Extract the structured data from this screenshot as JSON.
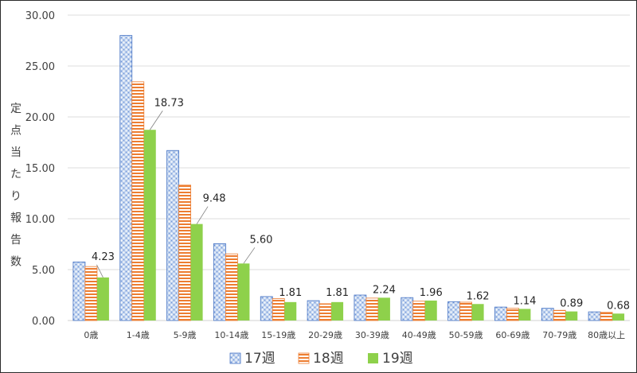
{
  "chart_data": {
    "type": "bar",
    "title": "",
    "xlabel": "",
    "ylabel": "定点当たり報告数",
    "ylim": [
      0,
      30
    ],
    "yticks": [
      "0.00",
      "5.00",
      "10.00",
      "15.00",
      "20.00",
      "25.00",
      "30.00"
    ],
    "grid": true,
    "legend": "bottom",
    "categories": [
      "0歳",
      "1-4歳",
      "5-9歳",
      "10-14歳",
      "15-19歳",
      "20-29歳",
      "30-39歳",
      "40-49歳",
      "50-59歳",
      "60-69歳",
      "70-79歳",
      "80歳以上"
    ],
    "series": [
      {
        "name": "17週",
        "pattern": "dots",
        "color": "#4472c4",
        "values": [
          5.75,
          28.0,
          16.7,
          7.55,
          2.35,
          1.95,
          2.5,
          2.25,
          1.85,
          1.32,
          1.2,
          0.85
        ]
      },
      {
        "name": "18週",
        "pattern": "stripes",
        "color": "#ed7d31",
        "values": [
          5.3,
          23.45,
          13.3,
          6.55,
          2.15,
          1.65,
          2.2,
          1.9,
          1.8,
          1.2,
          1.0,
          0.8
        ]
      },
      {
        "name": "19週",
        "pattern": "solid",
        "color": "#8ed14b",
        "values": [
          4.23,
          18.73,
          9.48,
          5.6,
          1.81,
          1.81,
          2.24,
          1.96,
          1.62,
          1.14,
          0.89,
          0.68
        ]
      }
    ],
    "data_labels": {
      "series": "19週",
      "labels": [
        "4.23",
        "18.73",
        "9.48",
        "5.60",
        "1.81",
        "1.81",
        "2.24",
        "1.96",
        "1.62",
        "1.14",
        "0.89",
        "0.68"
      ]
    },
    "colors": {
      "axis": "#d0d0d0",
      "grid": "#dcdcdc",
      "text": "#404040"
    }
  }
}
